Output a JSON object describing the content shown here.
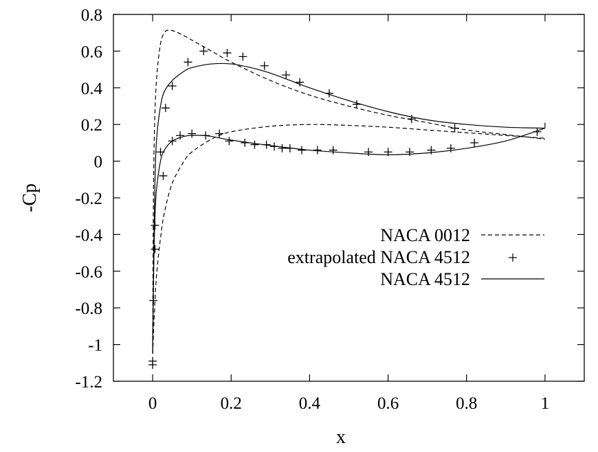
{
  "chart_data": {
    "type": "line",
    "title": "",
    "xlabel": "x",
    "ylabel": "-Cp",
    "xlim": [
      -0.1,
      1.1
    ],
    "ylim": [
      -1.2,
      0.8
    ],
    "xticks": [
      "0",
      "0.2",
      "0.4",
      "0.6",
      "0.8",
      "1"
    ],
    "yticks": [
      "0.8",
      "0.6",
      "0.4",
      "0.2",
      "0",
      "-0.2",
      "-0.4",
      "-0.6",
      "-0.8",
      "-1",
      "-1.2"
    ],
    "grid": false,
    "legend_position": "center-right",
    "series": [
      {
        "name": "NACA 0012",
        "style": "dashed",
        "color": "#000000",
        "upper": [
          [
            0,
            -1.05
          ],
          [
            0.002,
            -0.2
          ],
          [
            0.005,
            0.2
          ],
          [
            0.01,
            0.45
          ],
          [
            0.02,
            0.64
          ],
          [
            0.03,
            0.7
          ],
          [
            0.04,
            0.715
          ],
          [
            0.05,
            0.712
          ],
          [
            0.07,
            0.695
          ],
          [
            0.1,
            0.66
          ],
          [
            0.15,
            0.6
          ],
          [
            0.2,
            0.54
          ],
          [
            0.3,
            0.44
          ],
          [
            0.4,
            0.36
          ],
          [
            0.5,
            0.3
          ],
          [
            0.6,
            0.25
          ],
          [
            0.7,
            0.21
          ],
          [
            0.8,
            0.17
          ],
          [
            0.9,
            0.145
          ],
          [
            1.0,
            0.12
          ]
        ],
        "lower": [
          [
            0,
            -1.05
          ],
          [
            0.005,
            -0.8
          ],
          [
            0.01,
            -0.62
          ],
          [
            0.02,
            -0.42
          ],
          [
            0.03,
            -0.28
          ],
          [
            0.05,
            -0.12
          ],
          [
            0.08,
            0.0
          ],
          [
            0.1,
            0.05
          ],
          [
            0.15,
            0.12
          ],
          [
            0.2,
            0.16
          ],
          [
            0.3,
            0.19
          ],
          [
            0.4,
            0.2
          ],
          [
            0.5,
            0.195
          ],
          [
            0.6,
            0.185
          ],
          [
            0.7,
            0.17
          ],
          [
            0.8,
            0.155
          ],
          [
            0.9,
            0.14
          ],
          [
            1.0,
            0.125
          ]
        ]
      },
      {
        "name": "extrapolated NACA 4512",
        "style": "points",
        "color": "#000000",
        "points": [
          [
            0,
            -1.09
          ],
          [
            0,
            -1.11
          ],
          [
            0.002,
            -0.76
          ],
          [
            0.006,
            -0.48
          ],
          [
            0.006,
            -0.35
          ],
          [
            0.02,
            0.05
          ],
          [
            0.027,
            -0.08
          ],
          [
            0.033,
            0.29
          ],
          [
            0.05,
            0.41
          ],
          [
            0.05,
            0.11
          ],
          [
            0.07,
            0.14
          ],
          [
            0.09,
            0.54
          ],
          [
            0.1,
            0.15
          ],
          [
            0.13,
            0.6
          ],
          [
            0.135,
            0.14
          ],
          [
            0.17,
            0.15
          ],
          [
            0.19,
            0.59
          ],
          [
            0.195,
            0.11
          ],
          [
            0.23,
            0.57
          ],
          [
            0.235,
            0.1
          ],
          [
            0.26,
            0.09
          ],
          [
            0.285,
            0.52
          ],
          [
            0.29,
            0.09
          ],
          [
            0.31,
            0.08
          ],
          [
            0.33,
            0.07
          ],
          [
            0.34,
            0.47
          ],
          [
            0.35,
            0.07
          ],
          [
            0.375,
            0.43
          ],
          [
            0.38,
            0.06
          ],
          [
            0.42,
            0.06
          ],
          [
            0.45,
            0.37
          ],
          [
            0.46,
            0.06
          ],
          [
            0.52,
            0.31
          ],
          [
            0.55,
            0.05
          ],
          [
            0.6,
            0.05
          ],
          [
            0.655,
            0.05
          ],
          [
            0.66,
            0.23
          ],
          [
            0.71,
            0.06
          ],
          [
            0.76,
            0.07
          ],
          [
            0.77,
            0.18
          ],
          [
            0.82,
            0.1
          ],
          [
            0.98,
            0.16
          ]
        ]
      },
      {
        "name": "NACA 4512",
        "style": "solid",
        "color": "#000000",
        "upper": [
          [
            0,
            -1.05
          ],
          [
            0.003,
            -0.45
          ],
          [
            0.006,
            -0.1
          ],
          [
            0.01,
            0.12
          ],
          [
            0.02,
            0.3
          ],
          [
            0.03,
            0.38
          ],
          [
            0.05,
            0.44
          ],
          [
            0.08,
            0.49
          ],
          [
            0.1,
            0.51
          ],
          [
            0.15,
            0.53
          ],
          [
            0.2,
            0.53
          ],
          [
            0.25,
            0.51
          ],
          [
            0.3,
            0.48
          ],
          [
            0.35,
            0.44
          ],
          [
            0.4,
            0.4
          ],
          [
            0.5,
            0.33
          ],
          [
            0.6,
            0.27
          ],
          [
            0.7,
            0.225
          ],
          [
            0.8,
            0.2
          ],
          [
            0.9,
            0.185
          ],
          [
            1.0,
            0.18
          ]
        ],
        "lower": [
          [
            0,
            -1.05
          ],
          [
            0.003,
            -0.55
          ],
          [
            0.006,
            -0.3
          ],
          [
            0.01,
            -0.15
          ],
          [
            0.02,
            0.0
          ],
          [
            0.03,
            0.06
          ],
          [
            0.05,
            0.11
          ],
          [
            0.08,
            0.135
          ],
          [
            0.1,
            0.14
          ],
          [
            0.13,
            0.14
          ],
          [
            0.15,
            0.135
          ],
          [
            0.2,
            0.115
          ],
          [
            0.3,
            0.085
          ],
          [
            0.4,
            0.06
          ],
          [
            0.5,
            0.045
          ],
          [
            0.6,
            0.035
          ],
          [
            0.7,
            0.045
          ],
          [
            0.8,
            0.07
          ],
          [
            0.9,
            0.11
          ],
          [
            1.0,
            0.18
          ]
        ],
        "te": [
          [
            1.0,
            0.18
          ],
          [
            1.0,
            0.21
          ]
        ]
      }
    ]
  }
}
